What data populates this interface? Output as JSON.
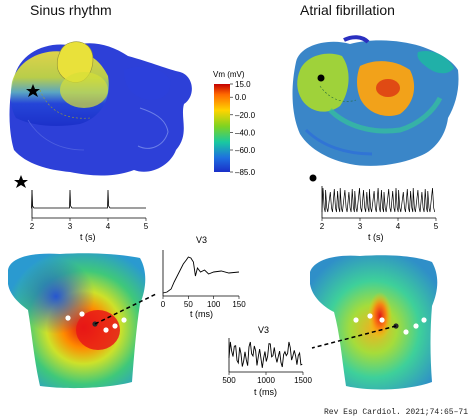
{
  "titles": {
    "left": "Sinus rhythm",
    "right": "Atrial fibrillation"
  },
  "colorbar": {
    "label": "Vm (mV)",
    "ticks": [
      "15.0",
      "0.0",
      "–20.0",
      "–40.0",
      "–60.0",
      "–85.0"
    ],
    "tick_values": [
      15,
      0,
      -20,
      -40,
      -60,
      -85
    ],
    "colors": [
      "#c40000",
      "#ff6a00",
      "#ffd400",
      "#7fd321",
      "#19c9a0",
      "#1e6fe0",
      "#1a2fc8"
    ]
  },
  "traces": {
    "sinus_vm": {
      "xlabel": "t (s)",
      "ticks": [
        "2",
        "3",
        "4",
        "5"
      ],
      "tick_values": [
        2,
        3,
        4,
        5
      ],
      "spike_times": [
        2.0,
        3.0,
        4.0
      ],
      "marker": "star"
    },
    "af_vm": {
      "xlabel": "t (s)",
      "ticks": [
        "2",
        "3",
        "4",
        "5"
      ],
      "tick_values": [
        2,
        3,
        4,
        5
      ],
      "marker": "dot"
    },
    "sinus_v3": {
      "title": "V3",
      "xlabel": "t (ms)",
      "ticks": [
        "0",
        "50",
        "100",
        "150"
      ],
      "tick_values": [
        0,
        50,
        100,
        150
      ]
    },
    "af_v3": {
      "title": "V3",
      "xlabel": "t (ms)",
      "ticks": [
        "500",
        "1000",
        "1500"
      ],
      "tick_values": [
        500,
        1000,
        1500
      ]
    }
  },
  "citation": "Rev Esp Cardiol. 2021;74:65–71"
}
